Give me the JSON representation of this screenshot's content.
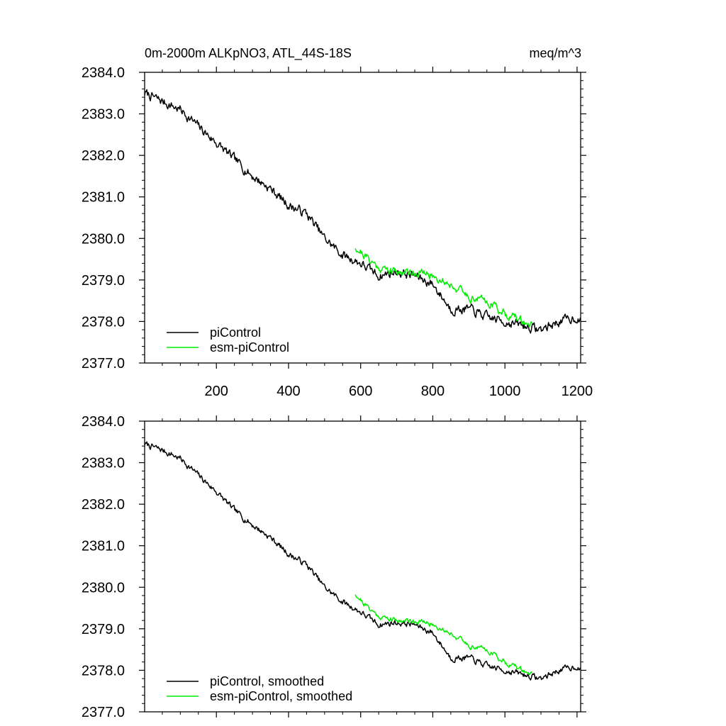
{
  "colors": {
    "piControl": "#000000",
    "esm_piControl": "#00ee00",
    "axis": "#000000"
  },
  "chart_data": [
    {
      "type": "line",
      "title": "0m-2000m ALKpNO3, ATL_44S-18S",
      "units": "meq/m^3",
      "xlabel": "",
      "ylabel": "",
      "xlim": [
        1,
        1210
      ],
      "ylim": [
        2377.0,
        2384.0
      ],
      "xticks": [
        200,
        400,
        600,
        800,
        1000,
        1200
      ],
      "xtick_labels": [
        "200",
        "400",
        "600",
        "800",
        "1000",
        "1200"
      ],
      "yticks": [
        2377.0,
        2378.0,
        2379.0,
        2380.0,
        2381.0,
        2382.0,
        2383.0,
        2384.0
      ],
      "ytick_labels": [
        "2377.0",
        "2378.0",
        "2379.0",
        "2380.0",
        "2381.0",
        "2382.0",
        "2383.0",
        "2384.0"
      ],
      "legend": "bottom-left",
      "series": [
        {
          "name": "piControl",
          "x_range": [
            1,
            1210
          ],
          "anchors": [
            [
              1,
              2383.5
            ],
            [
              50,
              2383.3
            ],
            [
              100,
              2383.1
            ],
            [
              150,
              2382.7
            ],
            [
              200,
              2382.3
            ],
            [
              250,
              2381.9
            ],
            [
              300,
              2381.5
            ],
            [
              350,
              2381.2
            ],
            [
              400,
              2380.8
            ],
            [
              450,
              2380.6
            ],
            [
              500,
              2380.0
            ],
            [
              550,
              2379.6
            ],
            [
              600,
              2379.4
            ],
            [
              650,
              2379.1
            ],
            [
              700,
              2379.2
            ],
            [
              750,
              2379.1
            ],
            [
              800,
              2378.9
            ],
            [
              850,
              2378.3
            ],
            [
              900,
              2378.3
            ],
            [
              950,
              2378.1
            ],
            [
              1000,
              2378.0
            ],
            [
              1050,
              2377.9
            ],
            [
              1100,
              2377.8
            ],
            [
              1150,
              2378.0
            ],
            [
              1200,
              2378.1
            ],
            [
              1210,
              2378.0
            ]
          ],
          "noise": 0.09,
          "seed": 7
        },
        {
          "name": "esm-piControl",
          "x_range": [
            585,
            1075
          ],
          "anchors": [
            [
              585,
              2379.8
            ],
            [
              610,
              2379.6
            ],
            [
              650,
              2379.3
            ],
            [
              700,
              2379.2
            ],
            [
              750,
              2379.2
            ],
            [
              800,
              2379.1
            ],
            [
              850,
              2378.9
            ],
            [
              900,
              2378.6
            ],
            [
              950,
              2378.5
            ],
            [
              1000,
              2378.2
            ],
            [
              1050,
              2378.0
            ],
            [
              1075,
              2377.9
            ]
          ],
          "noise": 0.08,
          "seed": 21
        }
      ]
    },
    {
      "type": "line",
      "title": "",
      "xlabel": "",
      "ylabel": "",
      "xlim": [
        1,
        1210
      ],
      "ylim": [
        2377.0,
        2384.0
      ],
      "xticks": [
        200,
        400,
        600,
        800,
        1000,
        1200
      ],
      "xtick_labels": [],
      "yticks": [
        2377.0,
        2378.0,
        2379.0,
        2380.0,
        2381.0,
        2382.0,
        2383.0,
        2384.0
      ],
      "ytick_labels": [
        "2377.0",
        "2378.0",
        "2379.0",
        "2380.0",
        "2381.0",
        "2382.0",
        "2383.0",
        "2384.0"
      ],
      "legend": "bottom-left",
      "series": [
        {
          "name": "piControl, smoothed",
          "x_range": [
            1,
            1210
          ],
          "anchors": [
            [
              1,
              2383.45
            ],
            [
              50,
              2383.3
            ],
            [
              100,
              2383.1
            ],
            [
              150,
              2382.7
            ],
            [
              200,
              2382.3
            ],
            [
              250,
              2381.85
            ],
            [
              300,
              2381.5
            ],
            [
              350,
              2381.2
            ],
            [
              400,
              2380.8
            ],
            [
              450,
              2380.55
            ],
            [
              500,
              2380.0
            ],
            [
              550,
              2379.65
            ],
            [
              600,
              2379.4
            ],
            [
              650,
              2379.1
            ],
            [
              700,
              2379.15
            ],
            [
              750,
              2379.1
            ],
            [
              800,
              2378.9
            ],
            [
              850,
              2378.3
            ],
            [
              900,
              2378.3
            ],
            [
              950,
              2378.1
            ],
            [
              1000,
              2378.0
            ],
            [
              1050,
              2377.9
            ],
            [
              1100,
              2377.8
            ],
            [
              1150,
              2378.0
            ],
            [
              1200,
              2378.1
            ],
            [
              1210,
              2378.0
            ]
          ],
          "noise": 0.06,
          "seed": 7
        },
        {
          "name": "esm-piControl, smoothed",
          "x_range": [
            585,
            1075
          ],
          "anchors": [
            [
              585,
              2379.85
            ],
            [
              610,
              2379.6
            ],
            [
              650,
              2379.3
            ],
            [
              700,
              2379.2
            ],
            [
              750,
              2379.2
            ],
            [
              800,
              2379.1
            ],
            [
              850,
              2378.9
            ],
            [
              900,
              2378.6
            ],
            [
              950,
              2378.5
            ],
            [
              1000,
              2378.2
            ],
            [
              1050,
              2378.0
            ],
            [
              1075,
              2377.9
            ]
          ],
          "noise": 0.05,
          "seed": 21
        }
      ]
    }
  ]
}
